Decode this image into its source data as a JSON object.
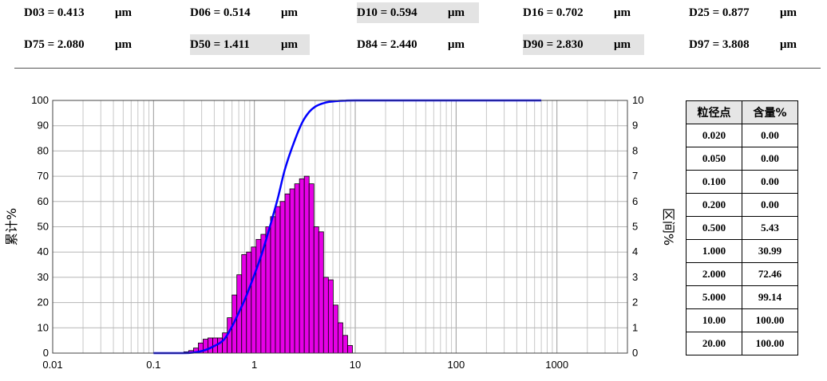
{
  "stats_row1": [
    {
      "label": "D03 = 0.413",
      "unit": "μm",
      "highlight": false
    },
    {
      "label": "D06 = 0.514",
      "unit": "μm",
      "highlight": false
    },
    {
      "label": "D10 = 0.594",
      "unit": "μm",
      "highlight": true
    },
    {
      "label": "D16 = 0.702",
      "unit": "μm",
      "highlight": false
    },
    {
      "label": "D25 = 0.877",
      "unit": "μm",
      "highlight": false
    }
  ],
  "stats_row2": [
    {
      "label": "D75 = 2.080",
      "unit": "μm",
      "highlight": false
    },
    {
      "label": "D50 = 1.411",
      "unit": "μm",
      "highlight": true
    },
    {
      "label": "D84 = 2.440",
      "unit": "μm",
      "highlight": false
    },
    {
      "label": "D90 = 2.830",
      "unit": "μm",
      "highlight": true
    },
    {
      "label": "D97 = 3.808",
      "unit": "μm",
      "highlight": false
    }
  ],
  "chart_data": {
    "type": "bar",
    "xscale": "log",
    "xlim": [
      0.01,
      5000
    ],
    "x_ticks": [
      "0.01",
      "0.1",
      "1",
      "10",
      "100",
      "1000"
    ],
    "ylabel_left": "累计%",
    "ylabel_right": "区间%",
    "ylim_left": [
      0,
      100
    ],
    "ylim_right": [
      0,
      10
    ],
    "y_ticks_left": [
      "0",
      "10",
      "20",
      "30",
      "40",
      "50",
      "60",
      "70",
      "80",
      "90",
      "100"
    ],
    "y_ticks_right": [
      "0",
      "1",
      "2",
      "3",
      "4",
      "5",
      "6",
      "7",
      "8",
      "9",
      "10"
    ],
    "grid": true,
    "colors": {
      "bars": "#e600e6",
      "cumulative": "#0000ff"
    },
    "series": [
      {
        "kind": "bar",
        "axis": "right",
        "x": [
          0.2,
          0.223,
          0.249,
          0.278,
          0.31,
          0.346,
          0.387,
          0.432,
          0.482,
          0.538,
          0.6,
          0.67,
          0.748,
          0.835,
          0.932,
          1.04,
          1.161,
          1.296,
          1.447,
          1.615,
          1.803,
          2.012,
          2.246,
          2.507,
          2.799,
          3.124,
          3.487,
          3.893,
          4.345,
          4.85,
          5.414,
          6.043,
          6.746,
          7.53,
          8.405
        ],
        "values": [
          0.05,
          0.1,
          0.2,
          0.4,
          0.55,
          0.6,
          0.6,
          0.6,
          0.8,
          1.4,
          2.3,
          3.1,
          3.9,
          4.0,
          4.2,
          4.5,
          4.7,
          5.0,
          5.4,
          5.8,
          6.0,
          6.3,
          6.5,
          6.7,
          6.9,
          7.0,
          6.7,
          5.0,
          4.8,
          3.0,
          2.9,
          1.9,
          1.2,
          0.7,
          0.3
        ]
      },
      {
        "kind": "line",
        "axis": "left",
        "x": [
          0.1,
          0.2,
          0.3,
          0.4,
          0.5,
          0.6,
          0.7,
          0.8,
          1,
          1.2,
          1.4,
          1.7,
          2,
          2.5,
          3,
          3.5,
          4,
          5,
          6,
          7,
          8,
          10,
          20,
          50,
          100,
          700
        ],
        "values": [
          0,
          0,
          0.8,
          2.8,
          5.4,
          10.5,
          16,
          21,
          31,
          40,
          49,
          61,
          72.5,
          84,
          91.5,
          95.5,
          97.5,
          99.1,
          99.6,
          99.85,
          99.95,
          100,
          100,
          100,
          100,
          100
        ]
      }
    ]
  },
  "table": {
    "headers": [
      "粒径点",
      "含量%"
    ],
    "rows": [
      [
        "0.020",
        "0.00"
      ],
      [
        "0.050",
        "0.00"
      ],
      [
        "0.100",
        "0.00"
      ],
      [
        "0.200",
        "0.00"
      ],
      [
        "0.500",
        "5.43"
      ],
      [
        "1.000",
        "30.99"
      ],
      [
        "2.000",
        "72.46"
      ],
      [
        "5.000",
        "99.14"
      ],
      [
        "10.00",
        "100.00"
      ],
      [
        "20.00",
        "100.00"
      ]
    ]
  }
}
